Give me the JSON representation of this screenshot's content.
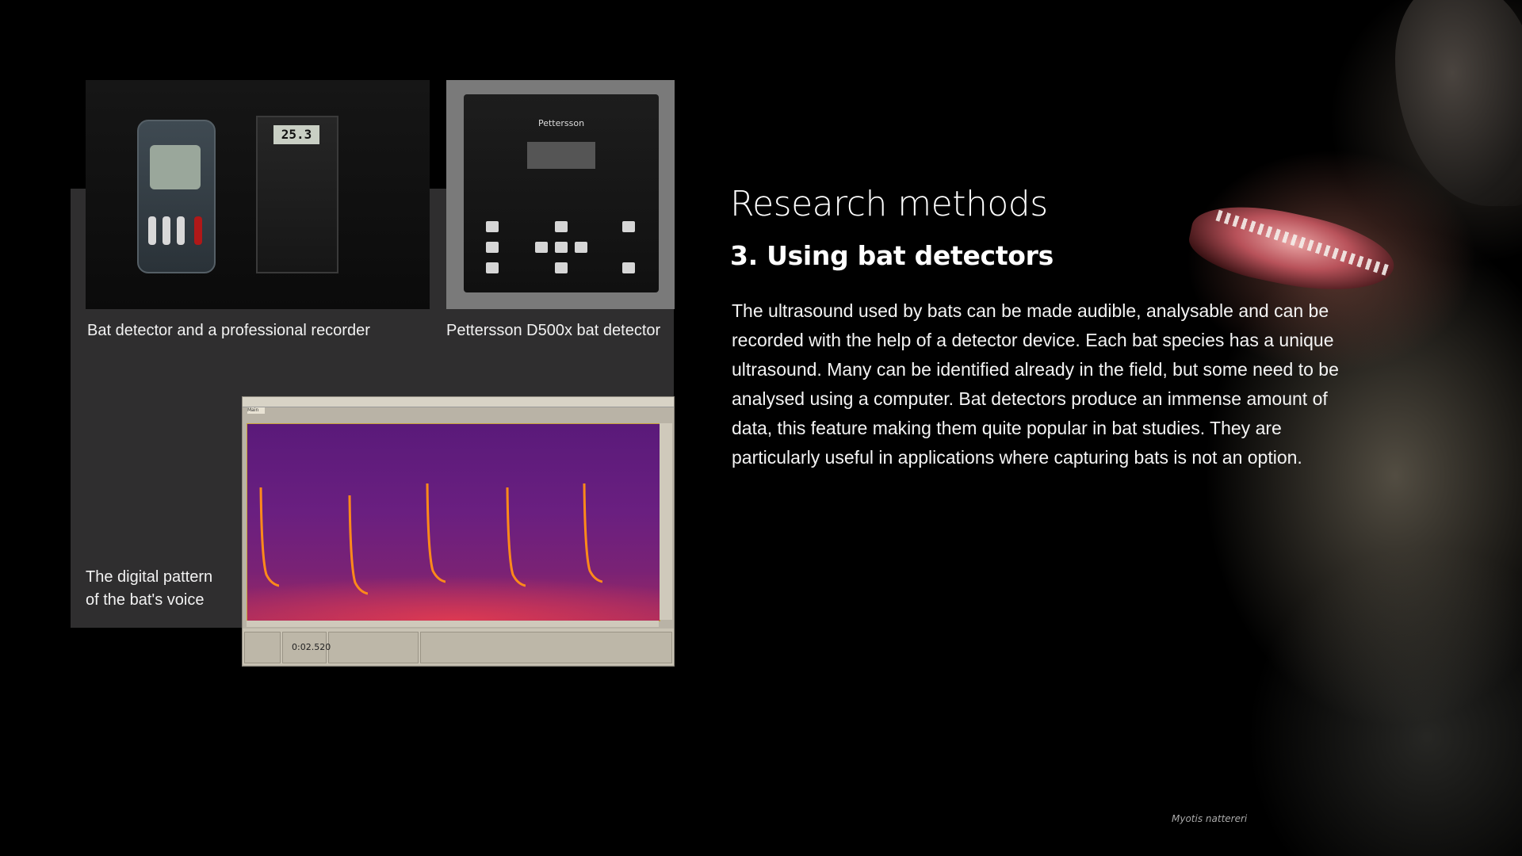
{
  "slide": {
    "title": "Research methods",
    "subtitle": "3. Using bat detectors",
    "body": "The ultrasound used by bats can be made audible, analysable and can be recorded with the help of a detector device. Each bat species has a unique ultrasound. Many can be identified already in the field, but some need to be analysed using a computer. Bat detectors produce an immense amount of data, this feature making them quite popular in bat studies. They are particularly useful in applications where capturing bats is not an option."
  },
  "figures": {
    "recorder_caption": "Bat detector and a professional recorder",
    "pettersson_caption": "Pettersson D500x bat detector",
    "pattern_caption": "The digital pattern of the bat's voice"
  },
  "devices": {
    "detector_lcd": "25.3",
    "pettersson_brand": "Pettersson"
  },
  "spectrogram": {
    "time": "0:02.520",
    "tab": "Main"
  },
  "photo": {
    "species": "Myotis nattereri"
  },
  "colors": {
    "background": "#000000",
    "panel": "#2f2e2f",
    "spectrogram_low": "#5a1a7a",
    "spectrogram_high": "#ff8a1a"
  }
}
